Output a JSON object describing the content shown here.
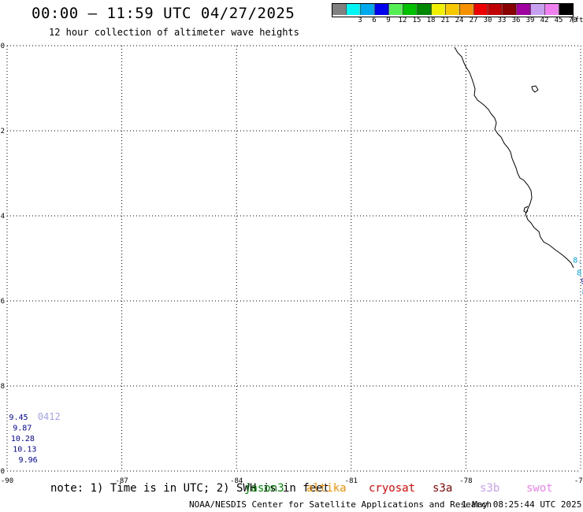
{
  "header": {
    "title": "00:00 – 11:59 UTC 04/27/2025",
    "subtitle": "12 hour collection of altimeter wave heights"
  },
  "colorbar": {
    "unit": "(ft)",
    "swatches": [
      {
        "color": "#808080",
        "label": ""
      },
      {
        "color": "#00f5f5",
        "label": "3"
      },
      {
        "color": "#00a8ee",
        "label": "6"
      },
      {
        "color": "#0000ee",
        "label": "9"
      },
      {
        "color": "#55ee55",
        "label": "12"
      },
      {
        "color": "#00c000",
        "label": "15"
      },
      {
        "color": "#008800",
        "label": "18"
      },
      {
        "color": "#f0f000",
        "label": "21"
      },
      {
        "color": "#f5c800",
        "label": "24"
      },
      {
        "color": "#f59000",
        "label": "27"
      },
      {
        "color": "#ee0000",
        "label": "30"
      },
      {
        "color": "#c00000",
        "label": "33"
      },
      {
        "color": "#880000",
        "label": "36"
      },
      {
        "color": "#a000a0",
        "label": "39"
      },
      {
        "color": "#c8a0f0",
        "label": "42"
      },
      {
        "color": "#f080f0",
        "label": "45"
      },
      {
        "color": "#000000",
        "label": "70"
      }
    ]
  },
  "map": {
    "lat_range": [
      -20,
      -10
    ],
    "lon_range": [
      -90,
      -75
    ],
    "lat_ticks": [
      "-10",
      "-12",
      "-14",
      "-16",
      "-18",
      "-20"
    ],
    "lon_ticks": [
      "-90",
      "-87",
      "-84",
      "-81",
      "-78",
      "-75"
    ],
    "grid": "dotted"
  },
  "observations": [
    {
      "group": "coastal",
      "lon": -75.2,
      "lat": -15.1,
      "value": "8.86",
      "color": "#00a8ee"
    },
    {
      "group": "coastal",
      "lon": -75.1,
      "lat": -15.4,
      "value": "8.80",
      "color": "#00a8ee"
    },
    {
      "group": "coastal",
      "lon": -75.0,
      "lat": -15.6,
      "value": "9.54",
      "color": "#0000aa"
    },
    {
      "group": "coastal",
      "lon": -74.97,
      "lat": -15.85,
      "value": "8.6",
      "color": "#00a8ee"
    },
    {
      "group": "coastal",
      "lon": -74.95,
      "lat": -16.1,
      "value": "8.",
      "color": "#00a8ee"
    },
    {
      "group": "coastal",
      "lon": -74.9,
      "lat": -16.3,
      "value": "7.",
      "color": "#00a8ee"
    },
    {
      "group": "coastal",
      "lon": -74.85,
      "lat": -16.55,
      "value": "8.",
      "color": "#00a8ee"
    },
    {
      "group": "coastal",
      "lon": -74.8,
      "lat": -16.8,
      "value": "8",
      "color": "#00a8ee"
    },
    {
      "group": "southwest",
      "lon": -89.95,
      "lat": -18.8,
      "value": "9.45",
      "color": "#0000aa"
    },
    {
      "group": "southwest",
      "lon": -89.85,
      "lat": -19.05,
      "value": "9.87",
      "color": "#0000aa"
    },
    {
      "group": "southwest",
      "lon": -89.9,
      "lat": -19.3,
      "value": "10.28",
      "color": "#0000aa"
    },
    {
      "group": "southwest",
      "lon": -89.85,
      "lat": -19.55,
      "value": "10.13",
      "color": "#0000aa"
    },
    {
      "group": "southwest",
      "lon": -89.7,
      "lat": -19.8,
      "value": "9.96",
      "color": "#0000aa"
    }
  ],
  "pass_label": {
    "lon": -89.2,
    "lat": -18.8,
    "text": "0412",
    "color": "#a0a0f0"
  },
  "footer": {
    "note": "note: 1) Time is in UTC; 2) SWH is in feet",
    "satellites": [
      {
        "name": "jason3",
        "color": "#008800"
      },
      {
        "name": "altika",
        "color": "#f59000"
      },
      {
        "name": "cryosat",
        "color": "#ee0000"
      },
      {
        "name": "s3a",
        "color": "#880000"
      },
      {
        "name": "s3b",
        "color": "#c8a0f0"
      },
      {
        "name": "swot",
        "color": "#f080f0"
      }
    ],
    "credit": "NOAA/NESDIS Center for Satellite Applications and Research",
    "timestamp": "1 May 08:25:44 UTC 2025"
  }
}
